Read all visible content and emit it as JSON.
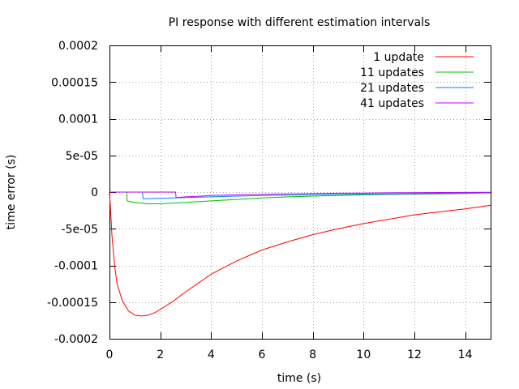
{
  "chart_data": {
    "type": "line",
    "title": "PI response with different estimation intervals",
    "xlabel": "time (s)",
    "ylabel": "time error (s)",
    "xlim": [
      0,
      15
    ],
    "ylim": [
      -0.0002,
      0.0002
    ],
    "grid": true,
    "legend_position": "top-right",
    "x_ticks": [
      "0",
      "2",
      "4",
      "6",
      "8",
      "10",
      "12",
      "14"
    ],
    "x_tick_values": [
      0,
      2,
      4,
      6,
      8,
      10,
      12,
      14
    ],
    "y_ticks": [
      "-0.0002",
      "-0.00015",
      "-0.0001",
      "-5e-05",
      "0",
      "5e-05",
      "0.0001",
      "0.00015",
      "0.0002"
    ],
    "y_tick_values": [
      -0.0002,
      -0.00015,
      -0.0001,
      -5e-05,
      0,
      5e-05,
      0.0001,
      0.00015,
      0.0002
    ],
    "series": [
      {
        "name": "1 update",
        "color": "#ff0000",
        "x": [
          0,
          0.05,
          0.1,
          0.2,
          0.3,
          0.5,
          0.75,
          1.0,
          1.25,
          1.5,
          1.75,
          2.0,
          2.5,
          3.0,
          3.5,
          4.0,
          5.0,
          6.0,
          7.0,
          8.0,
          9.0,
          10.0,
          11.0,
          12.0,
          13.0,
          14.0,
          15.0
        ],
        "y": [
          0,
          -3e-05,
          -6e-05,
          -0.0001,
          -0.000125,
          -0.000148,
          -0.000162,
          -0.000168,
          -0.000169,
          -0.000168,
          -0.000165,
          -0.00016,
          -0.000149,
          -0.000136,
          -0.000124,
          -0.000112,
          -9.4e-05,
          -7.9e-05,
          -6.8e-05,
          -5.8e-05,
          -5e-05,
          -4.3e-05,
          -3.7e-05,
          -3.1e-05,
          -2.7e-05,
          -2.3e-05,
          -1.8e-05
        ]
      },
      {
        "name": "11 updates",
        "color": "#00c000",
        "x": [
          0,
          0.68,
          0.7,
          0.8,
          1.0,
          1.5,
          2.0,
          3.0,
          4.0,
          5.0,
          6.0,
          7.0,
          8.0,
          9.0,
          10.0,
          11.0,
          12.0,
          13.0,
          14.0,
          15.0
        ],
        "y": [
          0,
          0,
          -1.2e-05,
          -1.3e-05,
          -1.4e-05,
          -1.6e-05,
          -1.6e-05,
          -1.4e-05,
          -1.2e-05,
          -1e-05,
          -8e-06,
          -6.5e-06,
          -5.5e-06,
          -4.5e-06,
          -3.8e-06,
          -3.2e-06,
          -2.8e-06,
          -2.4e-06,
          -2e-06,
          -1e-06
        ]
      },
      {
        "name": "21 updates",
        "color": "#0080ff",
        "x": [
          0,
          1.3,
          1.32,
          1.5,
          2.0,
          2.5,
          3.0,
          4.0,
          5.0,
          6.0,
          7.0,
          8.0,
          9.0,
          10.0,
          11.0,
          12.0,
          13.0,
          14.0,
          15.0
        ],
        "y": [
          0,
          0,
          -9e-06,
          -9e-06,
          -8.5e-06,
          -8e-06,
          -7.5e-06,
          -6.5e-06,
          -5.5e-06,
          -4.8e-06,
          -4.2e-06,
          -3.7e-06,
          -3.2e-06,
          -2.8e-06,
          -2.4e-06,
          -2e-06,
          -1.7e-06,
          -1.3e-06,
          -1e-06
        ]
      },
      {
        "name": "41 updates",
        "color": "#c000ff",
        "x": [
          0,
          2.6,
          2.62,
          3.0,
          4.0,
          5.0,
          6.0,
          7.0,
          8.0,
          9.0,
          10.0,
          11.0,
          12.0,
          13.0,
          14.0,
          15.0
        ],
        "y": [
          0,
          0,
          -7.5e-06,
          -6.5e-06,
          -4.8e-06,
          -3.8e-06,
          -3e-06,
          -2.4e-06,
          -2e-06,
          -1.6e-06,
          -1.3e-06,
          -1e-06,
          -8e-07,
          -6e-07,
          -4e-07,
          -3e-07
        ]
      }
    ]
  }
}
